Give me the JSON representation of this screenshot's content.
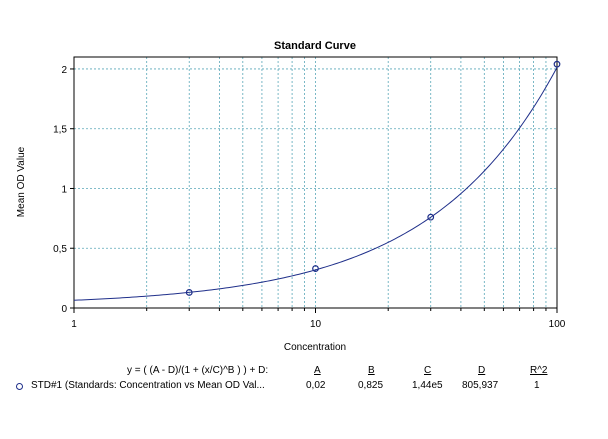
{
  "chart_data": {
    "type": "scatter",
    "title": "Standard Curve",
    "xlabel": "Concentration",
    "ylabel": "Mean OD Value",
    "x_scale": "log",
    "xlim": [
      1,
      100
    ],
    "ylim": [
      0,
      2.1
    ],
    "x_ticks": [
      {
        "value": 1,
        "label": "1"
      },
      {
        "value": 10,
        "label": "10"
      },
      {
        "value": 100,
        "label": "100"
      }
    ],
    "y_ticks": [
      {
        "value": 0,
        "label": "0"
      },
      {
        "value": 0.5,
        "label": "0,5"
      },
      {
        "value": 1,
        "label": "1"
      },
      {
        "value": 1.5,
        "label": "1,5"
      },
      {
        "value": 2,
        "label": "2"
      }
    ],
    "grid": true,
    "series": [
      {
        "name": "STD#1 (Standards: Concentration vs Mean OD Val...",
        "x": [
          3,
          10,
          30,
          100
        ],
        "y": [
          0.13,
          0.33,
          0.76,
          2.04
        ]
      }
    ],
    "fit": {
      "type": "4PL",
      "A": 0.02,
      "B": 0.825,
      "C": 144000,
      "D": 805.937
    }
  },
  "colors": {
    "curve": "#1f2f8a",
    "marker": "#1f2f8a",
    "grid": "#5aa7b8",
    "axis": "#000000"
  },
  "legend": {
    "equation": "y = ( (A - D)/(1 + (x/C)^B ) ) + D:",
    "headers": {
      "a": "A",
      "b": "B",
      "c": "C",
      "d": "D",
      "r2": "R^2"
    },
    "row": {
      "label": "STD#1 (Standards: Concentration vs Mean OD Val...",
      "a": "0,02",
      "b": "0,825",
      "c": "1,44e5",
      "d": "805,937",
      "r2": "1"
    }
  }
}
